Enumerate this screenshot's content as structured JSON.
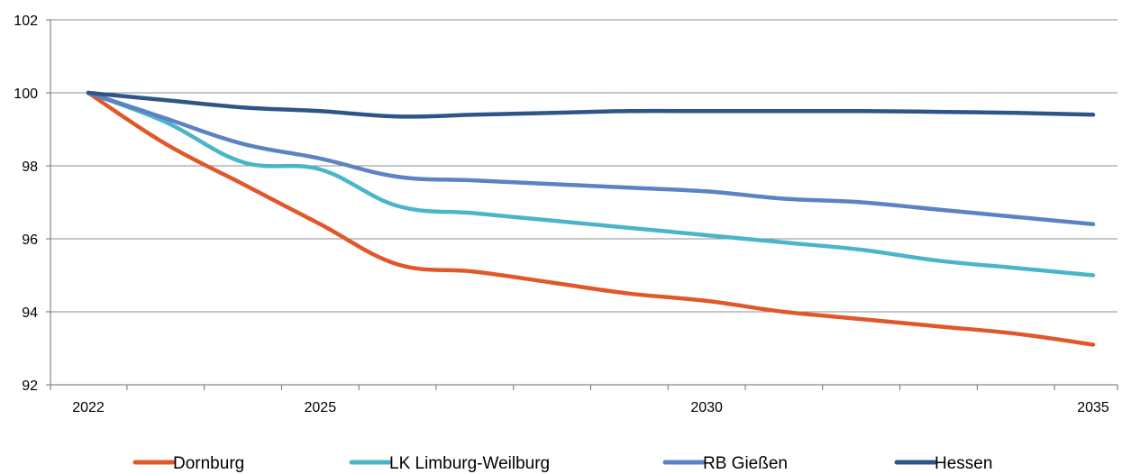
{
  "chart_data": {
    "type": "line",
    "title": "",
    "xlabel": "",
    "ylabel": "",
    "xlim": [
      2022,
      2035
    ],
    "ylim": [
      92,
      102
    ],
    "yticks": [
      92,
      94,
      96,
      98,
      100,
      102
    ],
    "xticks_labeled": [
      2022,
      2025,
      2030,
      2035
    ],
    "grid": "horizontal",
    "legend": "bottom",
    "x": [
      2022,
      2023,
      2024,
      2025,
      2026,
      2027,
      2028,
      2029,
      2030,
      2031,
      2032,
      2033,
      2034,
      2035
    ],
    "series": [
      {
        "name": "Dornburg",
        "color": "#e0582a",
        "values": [
          100,
          98.6,
          97.5,
          96.4,
          95.3,
          95.1,
          94.8,
          94.5,
          94.3,
          94.0,
          93.8,
          93.6,
          93.4,
          93.1
        ]
      },
      {
        "name": "LK Limburg-Weilburg",
        "color": "#4ab5c9",
        "values": [
          100,
          99.2,
          98.1,
          97.9,
          96.9,
          96.7,
          96.5,
          96.3,
          96.1,
          95.9,
          95.7,
          95.4,
          95.2,
          95.0
        ]
      },
      {
        "name": "RB Gießen",
        "color": "#5b83c2",
        "values": [
          100,
          99.3,
          98.6,
          98.2,
          97.7,
          97.6,
          97.5,
          97.4,
          97.3,
          97.1,
          97.0,
          96.8,
          96.6,
          96.4
        ]
      },
      {
        "name": "Hessen",
        "color": "#2e5587",
        "values": [
          100,
          99.8,
          99.6,
          99.5,
          99.35,
          99.4,
          99.45,
          99.5,
          99.5,
          99.5,
          99.5,
          99.48,
          99.45,
          99.4
        ]
      }
    ]
  }
}
